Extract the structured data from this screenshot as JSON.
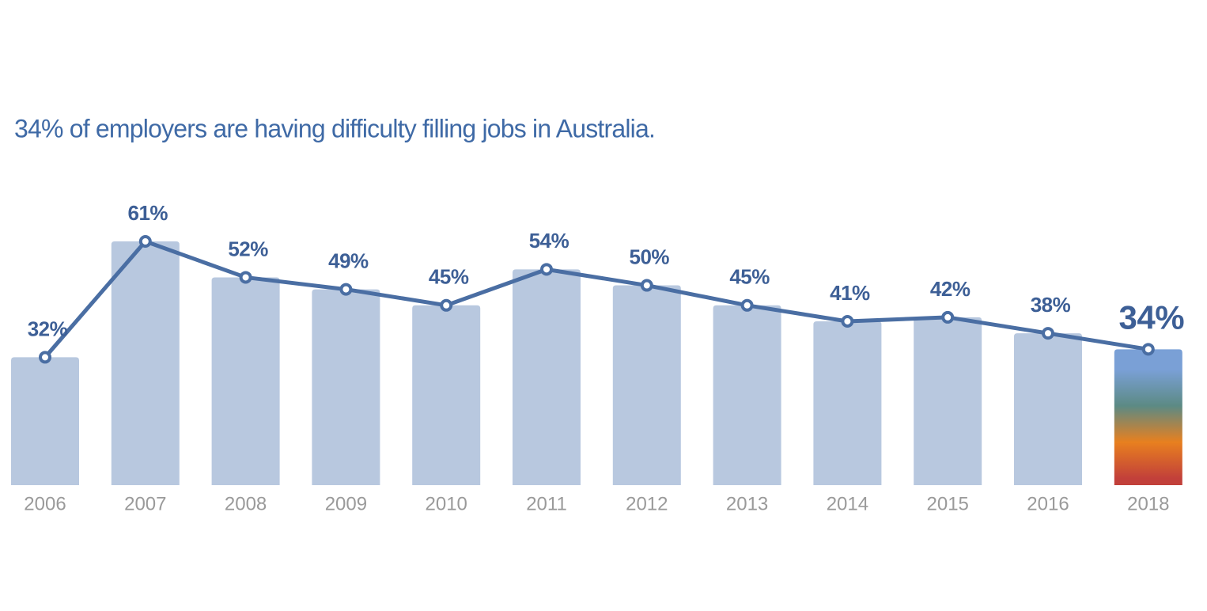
{
  "chart_data": {
    "type": "bar",
    "title": "34% of employers are having difficulty filling jobs in Australia.",
    "categories": [
      "2006",
      "2007",
      "2008",
      "2009",
      "2010",
      "2011",
      "2012",
      "2013",
      "2014",
      "2015",
      "2016",
      "2018"
    ],
    "values": [
      32,
      61,
      52,
      49,
      45,
      54,
      50,
      45,
      41,
      42,
      38,
      34
    ],
    "value_labels": [
      "32%",
      "61%",
      "52%",
      "49%",
      "45%",
      "54%",
      "50%",
      "45%",
      "41%",
      "42%",
      "38%",
      "34%"
    ],
    "color": "#b8c8df",
    "line_color": "#4a6ea3",
    "highlight_gradient": [
      "#7aa0d6",
      "#5c8a84",
      "#e8801f",
      "#c2403a"
    ]
  }
}
